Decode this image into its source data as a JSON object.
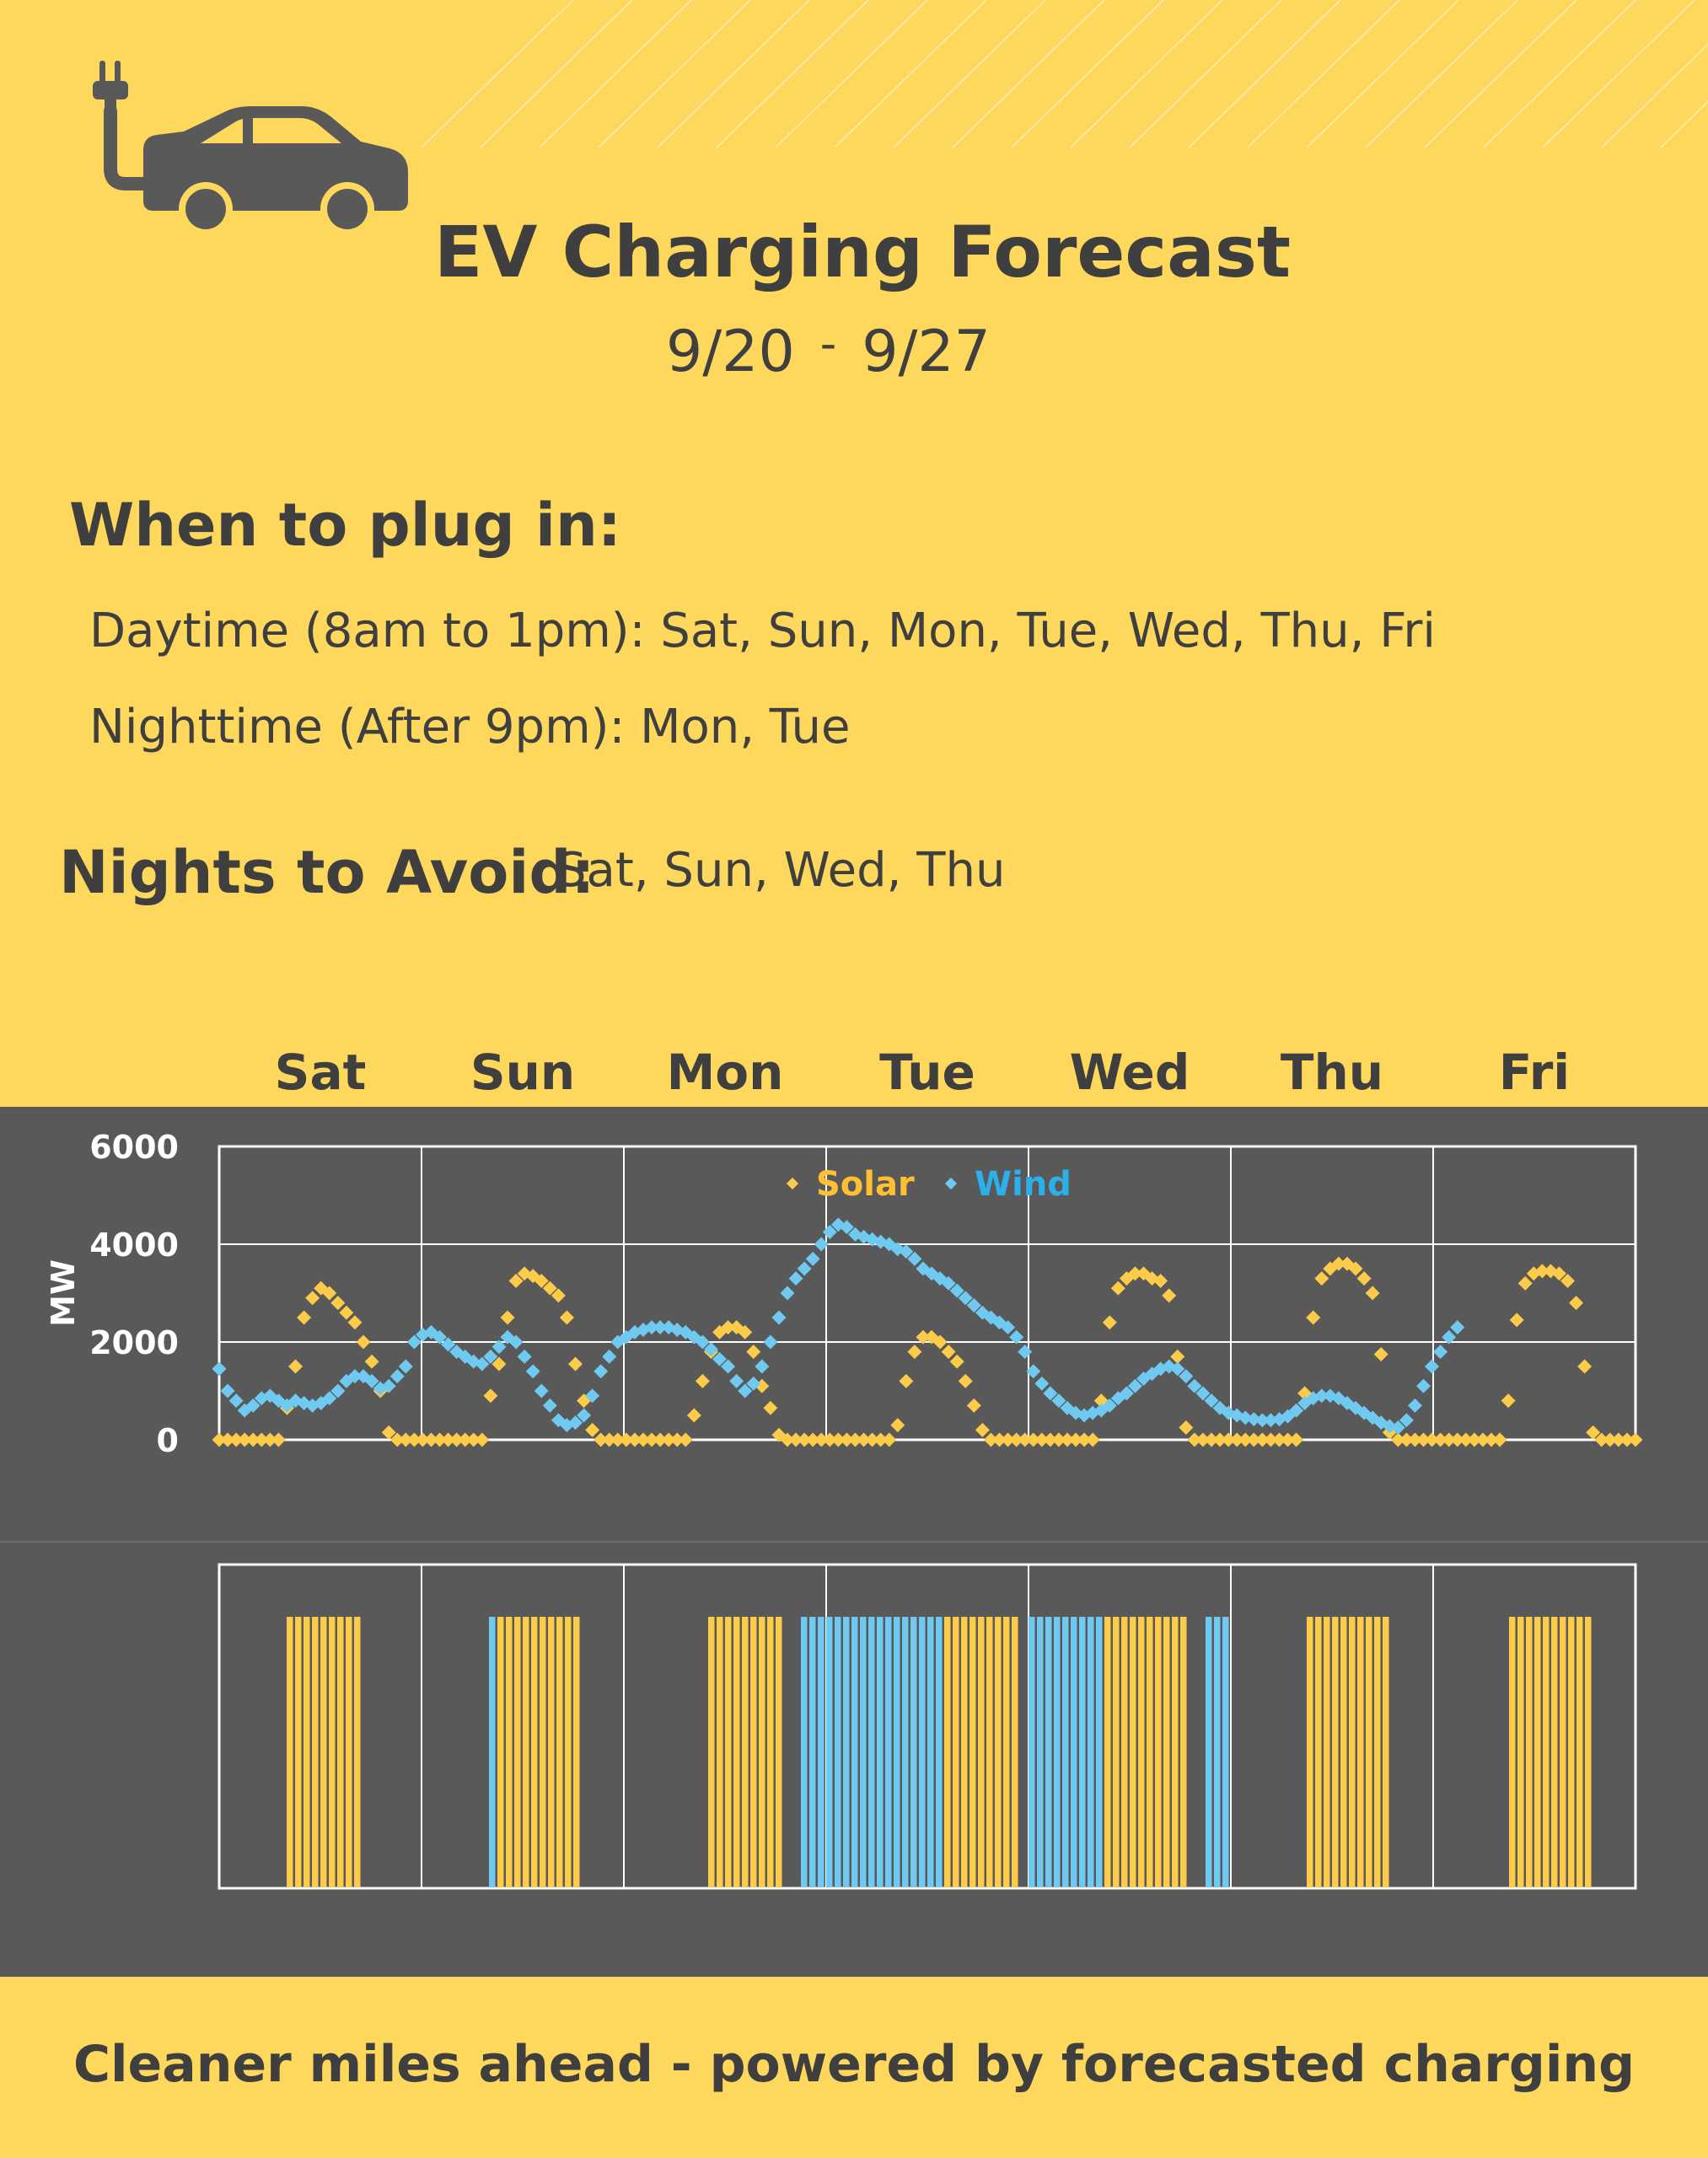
{
  "header": {
    "title": "EV Charging Forecast",
    "date_start": "9/20",
    "date_sep": "-",
    "date_end": "9/27",
    "icon": "ev-car-plug-icon"
  },
  "plug_in": {
    "heading": "When to plug in:",
    "daytime": "Daytime (8am to 1pm): Sat, Sun, Mon, Tue, Wed, Thu, Fri",
    "nighttime": "Nighttime  (After 9pm): Mon, Tue"
  },
  "avoid": {
    "heading": "Nights to Avoid:",
    "days": "Sat, Sun, Wed, Thu"
  },
  "footer": "Cleaner miles ahead - powered by forecasted charging",
  "colors": {
    "background": "#FDD85D",
    "panel": "#595959",
    "text": "#3F3F3F",
    "solar": "#FCCB4A",
    "wind": "#6FC9F0",
    "solar_label": "#FDC033",
    "wind_label": "#2BB0EA"
  },
  "chart_data": [
    {
      "type": "scatter",
      "categories": [
        "Sat",
        "Sun",
        "Mon",
        "Tue",
        "Wed",
        "Thu",
        "Fri"
      ],
      "ylabel": "MW",
      "ylim": [
        0,
        6000
      ],
      "yticks": [
        0,
        2000,
        4000,
        6000
      ],
      "grid": true,
      "legend": "top-center",
      "points_per_day": 24,
      "series": [
        {
          "name": "Solar",
          "values": [
            0,
            0,
            0,
            0,
            0,
            0,
            0,
            0,
            650,
            1500,
            2500,
            2900,
            3100,
            3000,
            2800,
            2600,
            2400,
            2000,
            1600,
            1000,
            150,
            0,
            0,
            0,
            0,
            0,
            0,
            0,
            0,
            0,
            0,
            0,
            900,
            1550,
            2500,
            3250,
            3400,
            3350,
            3250,
            3100,
            2950,
            2500,
            1550,
            800,
            200,
            0,
            0,
            0,
            0,
            0,
            0,
            0,
            0,
            0,
            0,
            0,
            500,
            1200,
            1800,
            2200,
            2300,
            2300,
            2200,
            1800,
            1100,
            650,
            100,
            0,
            0,
            0,
            0,
            0,
            0,
            0,
            0,
            0,
            0,
            0,
            0,
            0,
            300,
            1200,
            1800,
            2100,
            2100,
            2000,
            1800,
            1600,
            1200,
            700,
            200,
            0,
            0,
            0,
            0,
            0,
            0,
            0,
            0,
            0,
            0,
            0,
            0,
            0,
            800,
            2400,
            3100,
            3300,
            3400,
            3400,
            3300,
            3250,
            2950,
            1700,
            250,
            0,
            0,
            0,
            0,
            0,
            0,
            0,
            0,
            0,
            0,
            0,
            0,
            0,
            950,
            2500,
            3300,
            3500,
            3600,
            3600,
            3500,
            3300,
            3000,
            1750,
            150,
            0,
            0,
            0,
            0,
            0,
            0,
            0,
            0,
            0,
            0,
            0,
            0,
            0,
            800,
            2450,
            3200,
            3400,
            3450,
            3450,
            3400,
            3250,
            2800,
            1500,
            150,
            0,
            0,
            0,
            0,
            0
          ]
        },
        {
          "name": "Wind",
          "values": [
            1450,
            1000,
            800,
            600,
            700,
            850,
            900,
            800,
            700,
            800,
            750,
            700,
            750,
            850,
            1000,
            1200,
            1300,
            1300,
            1200,
            1050,
            1100,
            1300,
            1500,
            2000,
            2150,
            2200,
            2100,
            1950,
            1800,
            1700,
            1600,
            1550,
            1700,
            1900,
            2100,
            2000,
            1700,
            1400,
            1000,
            700,
            400,
            300,
            350,
            500,
            900,
            1400,
            1700,
            2000,
            2100,
            2200,
            2250,
            2300,
            2300,
            2300,
            2250,
            2200,
            2100,
            2000,
            1850,
            1650,
            1500,
            1200,
            1000,
            1150,
            1500,
            2000,
            2500,
            3000,
            3300,
            3500,
            3700,
            4000,
            4250,
            4400,
            4350,
            4200,
            4150,
            4100,
            4050,
            4000,
            3900,
            3850,
            3700,
            3500,
            3400,
            3300,
            3200,
            3050,
            2900,
            2750,
            2600,
            2500,
            2400,
            2300,
            2100,
            1800,
            1400,
            1150,
            950,
            800,
            650,
            550,
            500,
            550,
            600,
            700,
            850,
            950,
            1100,
            1250,
            1350,
            1450,
            1500,
            1450,
            1300,
            1100,
            950,
            800,
            650,
            550,
            500,
            450,
            420,
            400,
            400,
            420,
            480,
            600,
            750,
            850,
            900,
            900,
            850,
            750,
            650,
            550,
            450,
            350,
            280,
            250,
            400,
            700,
            1100,
            1500,
            1800,
            2100,
            2300
          ]
        }
      ]
    },
    {
      "type": "bar",
      "title": "",
      "categories": [
        "Sat",
        "Sun",
        "Mon",
        "Tue",
        "Wed",
        "Thu",
        "Fri"
      ],
      "xlabel": "",
      "ylabel": "",
      "segments": [
        {
          "name": "Solar",
          "day": "Sat",
          "hours": [
            8,
            9,
            10,
            11,
            12,
            13,
            14,
            15,
            16
          ]
        },
        {
          "name": "Wind",
          "day": "Sun",
          "hours": [
            8
          ]
        },
        {
          "name": "Solar",
          "day": "Sun",
          "hours": [
            9,
            10,
            11,
            12,
            13,
            14,
            15,
            16,
            17,
            18
          ]
        },
        {
          "name": "Solar",
          "day": "Mon",
          "hours": [
            10,
            11,
            12,
            13,
            14,
            15,
            16,
            17,
            18
          ]
        },
        {
          "name": "Wind",
          "day": "Mon",
          "hours": [
            21,
            22,
            23
          ]
        },
        {
          "name": "Wind",
          "day": "Tue",
          "hours": [
            0,
            1,
            2,
            3,
            4,
            5,
            6,
            7,
            8,
            9,
            10,
            11,
            12,
            13
          ]
        },
        {
          "name": "Solar",
          "day": "Tue",
          "hours": [
            14,
            15,
            16,
            17,
            18,
            19,
            20,
            21,
            22
          ]
        },
        {
          "name": "Wind",
          "day": "Wed",
          "hours": [
            21,
            22,
            23
          ]
        },
        {
          "name": "Wind",
          "day": "Wed",
          "hours": [
            0,
            1,
            2,
            3,
            4,
            5,
            6,
            7,
            8
          ]
        },
        {
          "name": "Solar",
          "day": "Wed",
          "hours": [
            9,
            10,
            11,
            12,
            13,
            14,
            15,
            16,
            17,
            18
          ]
        },
        {
          "name": "Solar",
          "day": "Thu",
          "hours": [
            9,
            10,
            11,
            12,
            13,
            14,
            15,
            16,
            17,
            18
          ]
        },
        {
          "name": "Solar",
          "day": "Fri",
          "hours": [
            9,
            10,
            11,
            12,
            13,
            14,
            15,
            16,
            17,
            18
          ]
        }
      ]
    }
  ]
}
